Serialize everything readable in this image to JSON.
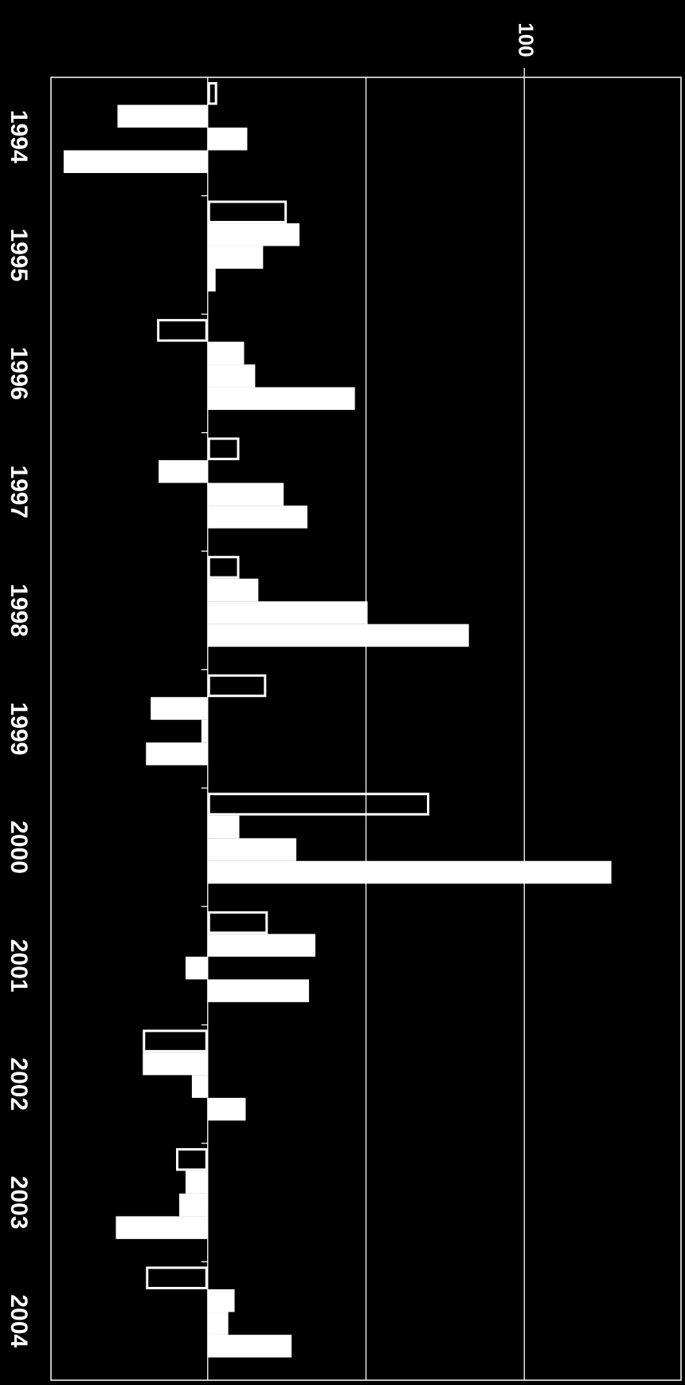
{
  "chart_data": {
    "type": "bar",
    "orientation": "horizontal",
    "categories": [
      "1994",
      "1995",
      "1996",
      "1997",
      "1998",
      "1999",
      "2000",
      "2001",
      "2002",
      "2003",
      "2004"
    ],
    "series": [
      {
        "color": "#ffffff",
        "style": "outline",
        "values": [
          3,
          25,
          -16,
          10,
          10,
          18.5,
          70,
          19,
          -20.5,
          -10,
          -19.5
        ]
      },
      {
        "color": "#ffffff",
        "style": "filled",
        "values": [
          -28.5,
          29,
          11.5,
          -15.5,
          16,
          -18,
          10,
          34,
          -20.5,
          -7,
          8.5
        ]
      },
      {
        "color": "#ffffff",
        "style": "filled",
        "values": [
          12.5,
          17.5,
          15,
          24,
          50.5,
          -2,
          28,
          -7,
          -5,
          -9,
          6.5
        ]
      },
      {
        "color": "#ffffff",
        "style": "filled",
        "values": [
          -45.5,
          2.5,
          46.5,
          31.5,
          82.5,
          -19.5,
          127.5,
          32,
          12,
          -29,
          26.5
        ]
      }
    ],
    "xlim": [
      -49.5,
      149.5
    ],
    "xticks": [
      100
    ],
    "gridlines": [
      0,
      50,
      100
    ],
    "grid": true,
    "background": "#000000"
  }
}
